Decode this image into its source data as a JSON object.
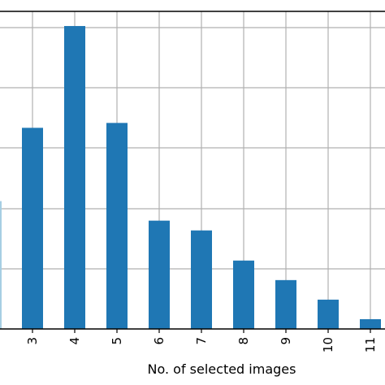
{
  "chart_data": {
    "type": "bar",
    "xlabel": "No. of selected images",
    "ylabel": "",
    "categories": [
      "3",
      "4",
      "5",
      "6",
      "7",
      "8",
      "9",
      "10",
      "11"
    ],
    "values": [
      247,
      372,
      253,
      133,
      121,
      84,
      60,
      36,
      12
    ],
    "ylim": [
      0,
      390
    ],
    "partial_bar_left_value": 157,
    "grid": true,
    "colors": {
      "bar": "#1f77b4",
      "partial_bar": "#a6cee3",
      "grid": "#b0b0b0",
      "axis": "#000000"
    }
  }
}
